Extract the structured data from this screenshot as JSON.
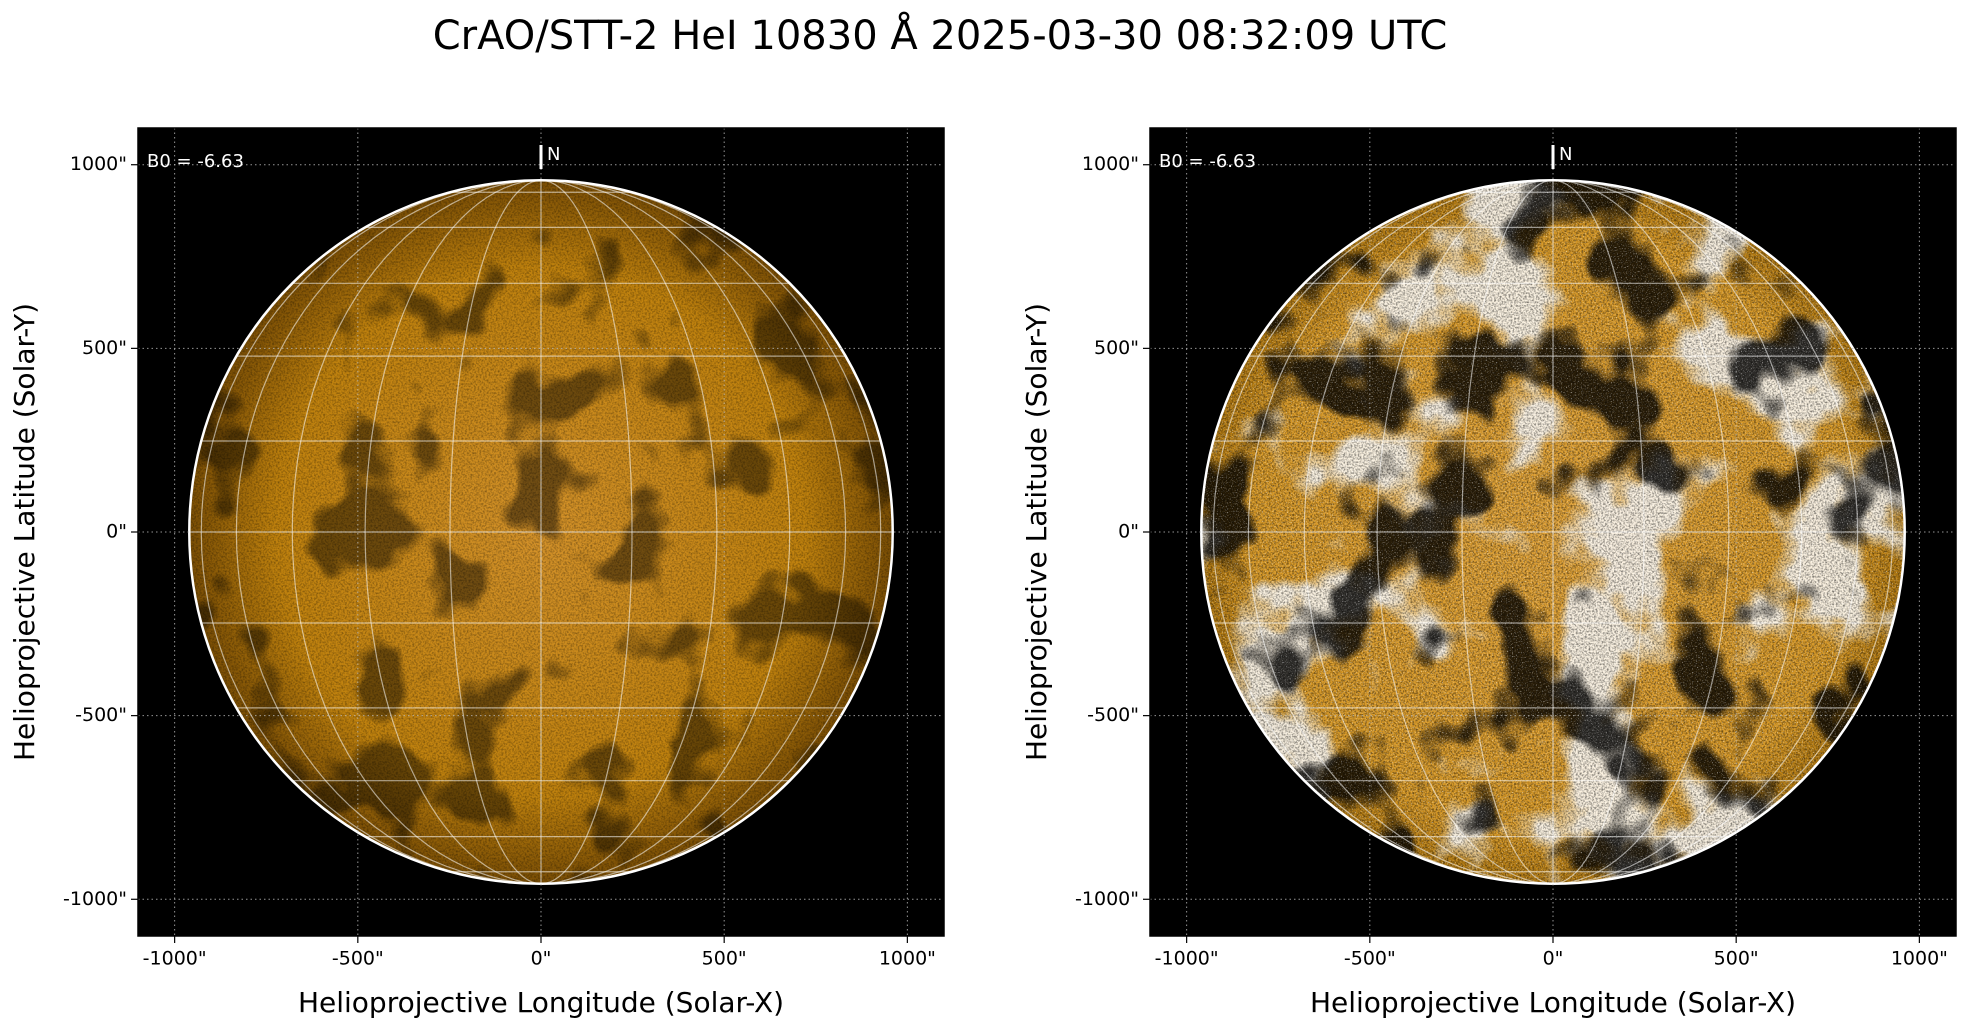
{
  "title": "CrAO/STT-2 HeI 10830 Å 2025-03-30 08:32:09 UTC",
  "chart_data": [
    {
      "type": "image",
      "style": "normal",
      "xlabel": "Helioprojective Longitude (Solar-X)",
      "ylabel": "Helioprojective Latitude (Solar-Y)",
      "annotation": "B0 = -6.63",
      "north_label": "N",
      "xlim": [
        -1100,
        1100
      ],
      "ylim": [
        -1100,
        1100
      ],
      "xticks": [
        {
          "value": -1000,
          "label": "-1000\""
        },
        {
          "value": -500,
          "label": "-500\""
        },
        {
          "value": 0,
          "label": "0\""
        },
        {
          "value": 500,
          "label": "500\""
        },
        {
          "value": 1000,
          "label": "1000\""
        }
      ],
      "yticks": [
        {
          "value": -1000,
          "label": "-1000\""
        },
        {
          "value": -500,
          "label": "-500\""
        },
        {
          "value": 0,
          "label": "0\""
        },
        {
          "value": 500,
          "label": "500\""
        },
        {
          "value": 1000,
          "label": "1000\""
        }
      ],
      "grid": true
    },
    {
      "type": "image",
      "style": "contrast",
      "xlabel": "Helioprojective Longitude (Solar-X)",
      "ylabel": "Helioprojective Latitude (Solar-Y)",
      "annotation": "B0 = -6.63",
      "north_label": "N",
      "xlim": [
        -1100,
        1100
      ],
      "ylim": [
        -1100,
        1100
      ],
      "xticks": [
        {
          "value": -1000,
          "label": "-1000\""
        },
        {
          "value": -500,
          "label": "-500\""
        },
        {
          "value": 0,
          "label": "0\""
        },
        {
          "value": 500,
          "label": "500\""
        },
        {
          "value": 1000,
          "label": "1000\""
        }
      ],
      "yticks": [
        {
          "value": -1000,
          "label": "-1000\""
        },
        {
          "value": -500,
          "label": "-500\""
        },
        {
          "value": 0,
          "label": "0\""
        },
        {
          "value": 500,
          "label": "500\""
        },
        {
          "value": 1000,
          "label": "1000\""
        }
      ],
      "grid": true
    }
  ]
}
